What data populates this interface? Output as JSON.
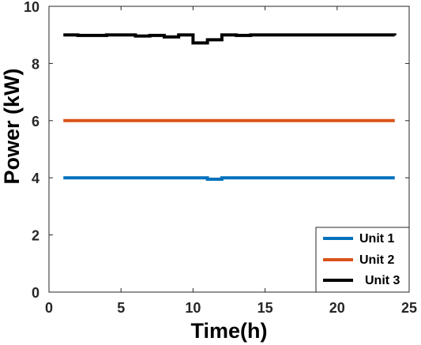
{
  "chart_data": {
    "type": "line",
    "title": "",
    "xlabel": "Time(h)",
    "ylabel": "Power (kW)",
    "xlim": [
      0,
      25
    ],
    "ylim": [
      0,
      10
    ],
    "xticks": [
      0,
      5,
      10,
      15,
      20,
      25
    ],
    "yticks": [
      0,
      2,
      4,
      6,
      8,
      10
    ],
    "grid": false,
    "legend_position": "bottom-right",
    "step": true,
    "x": [
      1,
      2,
      3,
      4,
      5,
      6,
      7,
      8,
      9,
      10,
      11,
      12,
      13,
      14,
      15,
      16,
      17,
      18,
      19,
      20,
      21,
      22,
      23,
      24
    ],
    "series": [
      {
        "name": "Unit 1",
        "color": "#0072BD",
        "values": [
          4,
          4,
          4,
          4,
          4,
          4,
          4,
          4,
          4,
          4,
          3.95,
          4,
          4,
          4,
          4,
          4,
          4,
          4,
          4,
          4,
          4,
          4,
          4,
          4
        ]
      },
      {
        "name": "Unit 2",
        "color": "#D95319",
        "values": [
          6,
          6,
          6,
          6,
          6,
          6,
          6,
          6,
          6,
          6,
          6,
          6,
          6,
          6,
          6,
          6,
          6,
          6,
          6,
          6,
          6,
          6,
          6,
          6
        ]
      },
      {
        "name": "Unit 3",
        "color": "#000000",
        "values": [
          9,
          8.98,
          8.98,
          9,
          9,
          8.96,
          8.98,
          8.93,
          9,
          8.72,
          8.83,
          9,
          8.98,
          9,
          9,
          9,
          9,
          9,
          9,
          9,
          9,
          9,
          9,
          8.98
        ]
      }
    ]
  }
}
